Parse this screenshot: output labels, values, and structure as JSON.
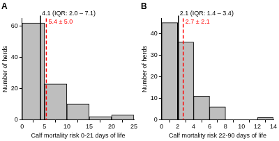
{
  "chart_data": [
    {
      "type": "histogram",
      "title": "A",
      "bins": [
        0,
        5,
        10,
        15,
        20,
        25
      ],
      "values": [
        62,
        23,
        10,
        2,
        3
      ],
      "color": "#bebebe",
      "x_label": "Calf mortality risk 0-21 days of life",
      "y_label": "Number of herds",
      "xlim": [
        0,
        25
      ],
      "xticks": [
        0,
        5,
        10,
        15,
        20,
        25
      ],
      "ylim": [
        0,
        65
      ],
      "yticks": [
        0,
        20,
        40,
        60
      ],
      "annotations": [
        {
          "x": 4.1,
          "label": "4.1 (IQR: 2.0 – 7.1)",
          "color": "#000000",
          "line_style": "solid"
        },
        {
          "x": 5.4,
          "label": "5.4 ± 5.0",
          "color": "#ff0000",
          "line_style": "dashed"
        }
      ]
    },
    {
      "type": "histogram",
      "title": "B",
      "bins": [
        0,
        2,
        4,
        6,
        8,
        10,
        12,
        14
      ],
      "values": [
        45,
        36,
        11,
        6,
        0,
        0,
        1
      ],
      "color": "#bebebe",
      "x_label": "Calf mortality risk 22-90 days of life",
      "y_label": "Number of herds",
      "xlim": [
        0,
        14
      ],
      "xticks": [
        0,
        2,
        4,
        6,
        8,
        10,
        12,
        14
      ],
      "ylim": [
        0,
        47
      ],
      "yticks": [
        0,
        10,
        20,
        30,
        40
      ],
      "annotations": [
        {
          "x": 2.1,
          "label": "2.1 (IQR: 1.4 – 3.4)",
          "color": "#000000",
          "line_style": "solid"
        },
        {
          "x": 2.7,
          "label": "2.7 ± 2.1",
          "color": "#ff0000",
          "line_style": "dashed"
        }
      ]
    }
  ]
}
